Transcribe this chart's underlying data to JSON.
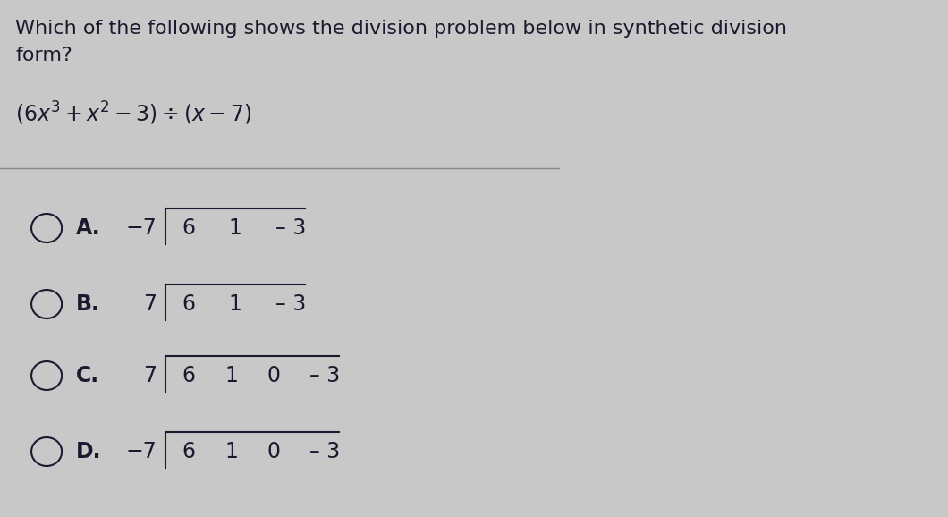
{
  "bg_color": "#c8c8c8",
  "title_line1": "Which of the following shows the division problem below in synthetic division",
  "title_line2": "form?",
  "text_color": "#1a1a2e",
  "fontsize_title": 16,
  "fontsize_problem": 16,
  "fontsize_options": 17,
  "options": [
    {
      "letter": "A.",
      "divisor": "−7",
      "coeff_parts": [
        "6",
        "1",
        "– 3"
      ],
      "has_zero": false
    },
    {
      "letter": "B.",
      "divisor": "7",
      "coeff_parts": [
        "6",
        "1",
        "– 3"
      ],
      "has_zero": false
    },
    {
      "letter": "C.",
      "divisor": "7",
      "coeff_parts": [
        "6",
        "1",
        "0",
        "– 3"
      ],
      "has_zero": true
    },
    {
      "letter": "D.",
      "divisor": "−7",
      "coeff_parts": [
        "6",
        "1",
        "0",
        "– 3"
      ],
      "has_zero": true
    }
  ]
}
